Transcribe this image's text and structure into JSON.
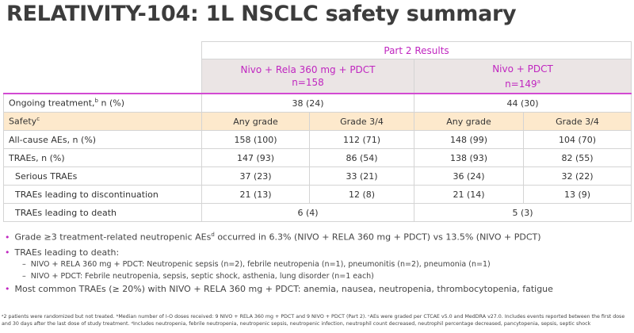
{
  "title": "RELATIVITY-104: 1L NSCLC safety summary",
  "table": {
    "group_header": "Part 2 Results",
    "arms": [
      {
        "name": "Nivo + Rela 360 mg + PDCT",
        "n": "n=158",
        "sup": ""
      },
      {
        "name": "Nivo + PDCT",
        "n": "n=149",
        "sup": "a"
      }
    ],
    "ongoing": {
      "label": "Ongoing treatment,",
      "sup": "b",
      "label2": " n (%)",
      "values": [
        "38 (24)",
        "44 (30)"
      ]
    },
    "safety": {
      "label": "Safety",
      "sup": "c",
      "cols": [
        "Any grade",
        "Grade 3/4",
        "Any grade",
        "Grade 3/4"
      ]
    },
    "rows": [
      {
        "label": "All-cause AEs, n (%)",
        "values": [
          "158 (100)",
          "112 (71)",
          "148 (99)",
          "104 (70)"
        ]
      },
      {
        "label": "TRAEs, n (%)",
        "values": [
          "147 (93)",
          "86 (54)",
          "138 (93)",
          "82 (55)"
        ]
      },
      {
        "label": "Serious TRAEs",
        "values": [
          "37 (23)",
          "33 (21)",
          "36 (24)",
          "32 (22)"
        ]
      },
      {
        "label": "TRAEs leading to discontinuation",
        "values": [
          "21 (13)",
          "12 (8)",
          "21 (14)",
          "13 (9)"
        ]
      }
    ],
    "death": {
      "label": "TRAEs leading to death",
      "values": [
        "6 (4)",
        "5 (3)"
      ]
    }
  },
  "bullets": {
    "b1a": "Grade ≥3 treatment-related neutropenic AEs",
    "b1sup": "d",
    "b1b": " occurred in 6.3% (NIVO + RELA 360 mg + PDCT) vs 13.5% (NIVO + PDCT)",
    "b2": "TRAEs leading to death:",
    "b2s1": "NIVO + RELA 360 mg + PDCT: Neutropenic sepsis (n=2), febrile neutropenia (n=1), pneumonitis (n=2), pneumonia (n=1)",
    "b2s2": "NIVO + PDCT: Febrile neutropenia, sepsis, septic shock, asthenia, lung disorder (n=1 each)",
    "b3": "Most common TRAEs (≥ 20%) with NIVO + RELA 360 mg + PDCT: anemia, nausea, neutropenia, thrombocytopenia, fatigue"
  },
  "footnote": "ᵃ2 patients were randomized but not treated. ᵇMedian number of I-O doses received: 9 NIVO + RELA 360 mg + PDCT and 9 NIVO + PDCT (Part 2). ᶜAEs were graded per CTCAE v5.0 and MedDRA v27.0. Includes events reported between the first dose and 30 days after the last dose of study treatment. ᵈIncludes neutropenia, febrile neutropenia, neutropenic sepsis, neutropenic infection, neutrophil count decreased, neutrophil percentage decreased, pancytopenia, sepsis, septic shock"
}
